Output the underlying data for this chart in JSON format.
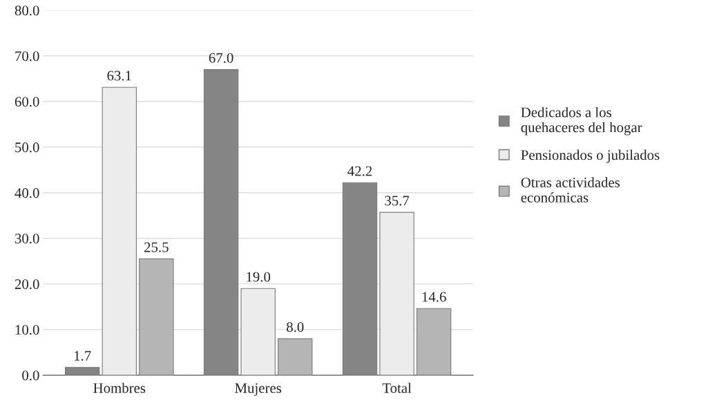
{
  "chart_data": {
    "type": "bar",
    "categories": [
      "Hombres",
      "Mujeres",
      "Total"
    ],
    "series": [
      {
        "name": "Dedicados a los\nquehaceres del hogar",
        "color": "#858585",
        "values": [
          1.7,
          67.0,
          42.2
        ],
        "value_labels": [
          "1.7",
          "67.0",
          "42.2"
        ]
      },
      {
        "name": "Pensionados o jubilados",
        "color": "#ececec",
        "values": [
          63.1,
          19.0,
          35.7
        ],
        "value_labels": [
          "63.1",
          "19.0",
          "35.7"
        ]
      },
      {
        "name": "Otras actividades\neconómicas",
        "color": "#b5b5b5",
        "values": [
          25.5,
          8.0,
          14.6
        ],
        "value_labels": [
          "25.5",
          "8.0",
          "14.6"
        ]
      }
    ],
    "ylim": [
      0,
      80
    ],
    "yticks": [
      {
        "value": 0,
        "label": "0.0"
      },
      {
        "value": 10,
        "label": "10.0"
      },
      {
        "value": 20,
        "label": "20.0"
      },
      {
        "value": 30,
        "label": "30.0"
      },
      {
        "value": 40,
        "label": "40.0"
      },
      {
        "value": 50,
        "label": "50.0"
      },
      {
        "value": 60,
        "label": "60.0"
      },
      {
        "value": 70,
        "label": "70.0"
      },
      {
        "value": 80,
        "label": "80.0"
      }
    ],
    "grid": "y",
    "legend": "right"
  }
}
